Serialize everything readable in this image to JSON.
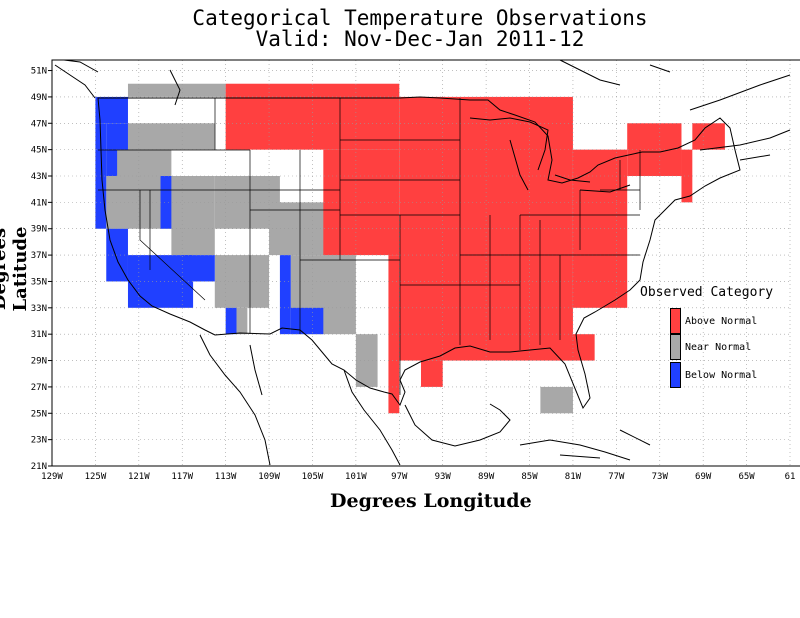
{
  "title_line1": "Categorical Temperature Observations",
  "title_line2": "Valid: Nov-Dec-Jan 2011-12",
  "xlabel": "Degrees Longitude",
  "ylabel": "Degrees Latitude",
  "x_ticks": [
    "129W",
    "125W",
    "121W",
    "117W",
    "113W",
    "109W",
    "105W",
    "101W",
    "97W",
    "93W",
    "89W",
    "85W",
    "81W",
    "77W",
    "73W",
    "69W",
    "65W",
    "61"
  ],
  "y_ticks": [
    "51N",
    "49N",
    "47N",
    "45N",
    "43N",
    "41N",
    "39N",
    "37N",
    "35N",
    "33N",
    "31N",
    "29N",
    "27N",
    "25N",
    "23N",
    "21N"
  ],
  "legend": {
    "title": "Observed Category",
    "items": [
      {
        "label": "Above Normal",
        "color": "#ff4040"
      },
      {
        "label": "Near Normal",
        "color": "#a8a8a8"
      },
      {
        "label": "Below Normal",
        "color": "#2040ff"
      }
    ]
  },
  "colors": {
    "above": "#ff4040",
    "near": "#a8a8a8",
    "below": "#2040ff"
  },
  "cells": {
    "below": [
      [
        -125,
        47,
        -122,
        49
      ],
      [
        -125,
        39,
        -124,
        47
      ],
      [
        -124,
        45,
        -122,
        47
      ],
      [
        -124,
        43,
        -123,
        45
      ],
      [
        -119,
        39,
        -118,
        43
      ],
      [
        -124,
        35,
        -122,
        39
      ],
      [
        -122,
        33,
        -116,
        37
      ],
      [
        -117,
        35,
        -114,
        37
      ],
      [
        -113,
        31,
        -112,
        33
      ],
      [
        -108,
        31,
        -107,
        37
      ],
      [
        -107,
        31,
        -104,
        33
      ]
    ],
    "near": [
      [
        -122,
        49,
        -113,
        50
      ],
      [
        -122,
        45,
        -114,
        47
      ],
      [
        -124,
        39,
        -118,
        45
      ],
      [
        -118,
        37,
        -114,
        43
      ],
      [
        -114,
        39,
        -108,
        43
      ],
      [
        -114,
        33,
        -109,
        37
      ],
      [
        -112,
        31,
        -111,
        33
      ],
      [
        -109,
        37,
        -102,
        41
      ],
      [
        -107,
        31,
        -101,
        37
      ],
      [
        -101,
        27,
        -99,
        31
      ],
      [
        -84,
        25,
        -81,
        27
      ]
    ],
    "above": [
      [
        -113,
        45,
        -97,
        50
      ],
      [
        -104,
        37,
        -97,
        45
      ],
      [
        -98,
        25,
        -97,
        37
      ],
      [
        -97,
        29,
        -81,
        49
      ],
      [
        -95,
        27,
        -93,
        29
      ],
      [
        -81,
        29,
        -79,
        31
      ],
      [
        -83,
        29,
        -81,
        31
      ],
      [
        -81,
        33,
        -76,
        45
      ],
      [
        -76,
        43,
        -71,
        47
      ],
      [
        -71,
        41,
        -70,
        45
      ],
      [
        -70,
        45,
        -67,
        47
      ]
    ]
  }
}
